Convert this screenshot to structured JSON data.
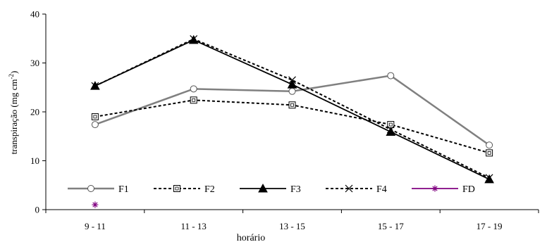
{
  "chart_data": {
    "type": "line",
    "categories": [
      "9 - 11",
      "11 - 13",
      "13 - 15",
      "15 - 17",
      "17 - 19"
    ],
    "xlabel": "horário",
    "ylabel": "transpiração (mg cm",
    "ylabel_sup": "-2",
    "ylabel_end": ")",
    "ylim": [
      0,
      40
    ],
    "yticks": [
      0,
      10,
      20,
      30,
      40
    ],
    "grid": false,
    "legend_position": "bottom-left",
    "series": [
      {
        "name": "F1",
        "values": [
          17.4,
          24.7,
          24.2,
          27.4,
          13.2
        ],
        "color": "#808080",
        "dash": "solid",
        "marker": "circle"
      },
      {
        "name": "F2",
        "values": [
          19.0,
          22.4,
          21.4,
          17.4,
          11.6
        ],
        "color": "#000000",
        "dash": "dashed",
        "marker": "square"
      },
      {
        "name": "F3",
        "values": [
          25.3,
          34.7,
          25.6,
          15.9,
          6.2
        ],
        "color": "#000000",
        "dash": "solid",
        "marker": "triangle"
      },
      {
        "name": "F4",
        "values": [
          25.3,
          34.9,
          26.5,
          16.4,
          6.5
        ],
        "color": "#000000",
        "dash": "dashed",
        "marker": "x"
      },
      {
        "name": "FD",
        "values": [
          1.0,
          null,
          null,
          null,
          null
        ],
        "color": "#800080",
        "dash": "solid",
        "marker": "star"
      }
    ]
  }
}
